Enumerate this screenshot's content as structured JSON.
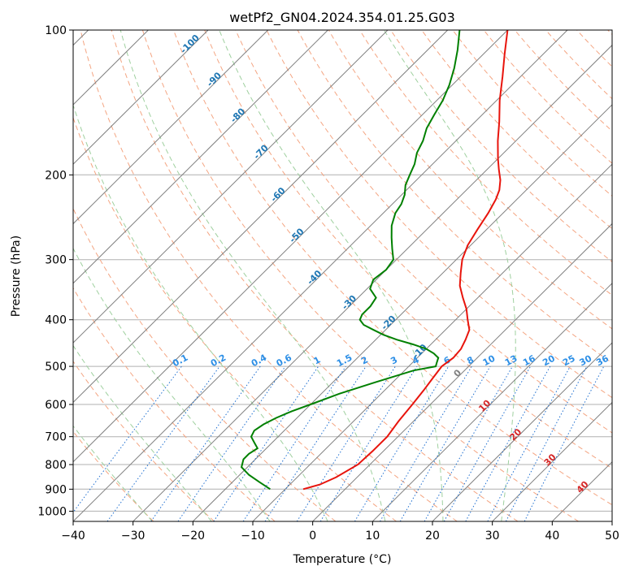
{
  "chart_data": {
    "type": "line",
    "title": "wetPf2_GN04.2024.354.01.25.G03",
    "xlabel": "Temperature (°C)",
    "ylabel": "Pressure (hPa)",
    "xlim": [
      -40,
      50
    ],
    "ylim": [
      1050,
      100
    ],
    "y_scale": "log",
    "x_ticks": [
      -40,
      -30,
      -20,
      -10,
      0,
      10,
      20,
      30,
      40,
      50
    ],
    "y_ticks": [
      100,
      200,
      300,
      400,
      500,
      600,
      700,
      800,
      900,
      1000
    ],
    "grid": true,
    "colors": {
      "temperature": "#e8140c",
      "dewpoint": "#008000",
      "isotherm": "#808080",
      "dry_adiabat": "#f4a582",
      "moist_adiabat": "#9fd09f",
      "mixing_ratio": "#1f6fd0",
      "hght_label": "#1f77b4",
      "mixing_label": "#2d8fe6"
    },
    "series": [
      {
        "key": "temperature",
        "pressure": [
          900,
          880,
          850,
          800,
          750,
          700,
          650,
          600,
          560,
          530,
          500,
          480,
          460,
          440,
          420,
          400,
          380,
          360,
          340,
          320,
          300,
          280,
          260,
          240,
          225,
          215,
          205,
          195,
          185,
          170,
          155,
          140,
          125,
          112,
          100
        ],
        "temperature": [
          -7,
          -5,
          -3.5,
          -2,
          -1.8,
          -1.8,
          -2.5,
          -3,
          -3.5,
          -4,
          -4.5,
          -4,
          -4.2,
          -5,
          -6,
          -8,
          -10,
          -12.5,
          -15,
          -17,
          -19,
          -20.5,
          -21.5,
          -22.5,
          -23.5,
          -24.5,
          -26,
          -28,
          -30,
          -33,
          -36,
          -39.5,
          -43,
          -46.5,
          -50
        ]
      },
      {
        "key": "dewpoint",
        "pressure": [
          900,
          870,
          840,
          810,
          780,
          760,
          740,
          720,
          700,
          680,
          660,
          640,
          620,
          600,
          570,
          540,
          510,
          500,
          490,
          480,
          470,
          460,
          450,
          440,
          430,
          420,
          410,
          400,
          390,
          375,
          360,
          345,
          330,
          315,
          300,
          285,
          270,
          255,
          240,
          230,
          220,
          210,
          200,
          190,
          180,
          170,
          160,
          150,
          140,
          130,
          120,
          110,
          100
        ],
        "temperature": [
          -12.5,
          -15.5,
          -18.5,
          -21,
          -22,
          -22,
          -21.5,
          -23,
          -24.5,
          -25,
          -24.5,
          -23.5,
          -22,
          -20,
          -17,
          -13,
          -8.5,
          -5.5,
          -6,
          -6.5,
          -8,
          -10,
          -13,
          -16.5,
          -19.5,
          -22,
          -24.5,
          -26,
          -26.5,
          -26.5,
          -27,
          -29.5,
          -30.5,
          -30,
          -30.5,
          -32.5,
          -34.5,
          -36.5,
          -38,
          -38.5,
          -39.5,
          -41,
          -42,
          -43,
          -44.5,
          -45.5,
          -47,
          -48,
          -49,
          -50.5,
          -52.5,
          -55,
          -58
        ]
      }
    ],
    "isotherm_labels": [
      "-100",
      "-90",
      "-80",
      "-70",
      "-60",
      "-50",
      "-40",
      "-30",
      "-20",
      "-10",
      "0",
      "10",
      "20",
      "30",
      "40"
    ],
    "isotherm_label_values": [
      -100,
      -90,
      -80,
      -70,
      -60,
      -50,
      -40,
      -30,
      -20,
      -10,
      0,
      10,
      20,
      30,
      40
    ],
    "mixing_ratio_labels": [
      "0.1",
      "0.2",
      "0.4",
      "0.6",
      "1",
      "1.5",
      "2",
      "3",
      "4",
      "6",
      "8",
      "10",
      "13",
      "16",
      "20",
      "25",
      "30",
      "36"
    ],
    "mixing_ratio_values": [
      0.1,
      0.2,
      0.4,
      0.6,
      1,
      1.5,
      2,
      3,
      4,
      6,
      8,
      10,
      13,
      16,
      20,
      25,
      30,
      36
    ]
  }
}
